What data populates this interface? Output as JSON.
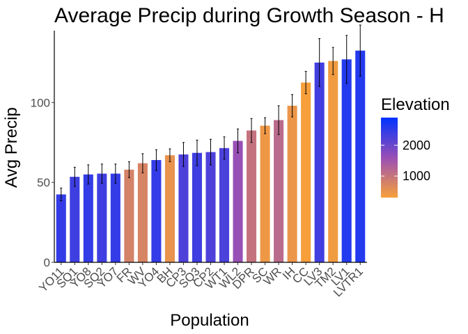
{
  "chart_data": {
    "type": "bar",
    "title": "Average Precip during Growth Season - H",
    "xlabel": "Population",
    "ylabel": "Avg Precip",
    "ylim": [
      0,
      145
    ],
    "yticks": [
      0,
      50,
      100
    ],
    "grid": false,
    "legend": {
      "title": "Elevation",
      "placement": "right",
      "type": "color-gradient",
      "ticks": [
        2000,
        1000
      ],
      "range": [
        300,
        2900
      ],
      "low_color": "#F7A03A",
      "mid_color": "#9A4FB5",
      "high_color": "#0033FF"
    },
    "categories": [
      "YO11",
      "SQ1",
      "YO8",
      "SQ2",
      "YO7",
      "FR",
      "WV",
      "YO4",
      "BH",
      "CP3",
      "SQ3",
      "CP2",
      "WT1",
      "WL2",
      "DPR",
      "SC",
      "WR",
      "IH",
      "CC",
      "LV3",
      "TM2",
      "LV1",
      "LVTR1"
    ],
    "values": [
      42.5,
      53.5,
      55,
      55.5,
      55.5,
      58,
      62,
      64,
      67,
      67.5,
      68.5,
      69,
      71.5,
      76,
      82.5,
      85.5,
      89,
      98,
      112.5,
      125,
      126,
      127,
      132.5
    ],
    "error": [
      4,
      6,
      6,
      6,
      6,
      5,
      6,
      6.5,
      4,
      7.5,
      8,
      8,
      7,
      7.5,
      7.5,
      5,
      9,
      7,
      7,
      15,
      8.5,
      15,
      16
    ],
    "elevation": [
      2470,
      2373,
      2470,
      2373,
      2470,
      787,
      749,
      2470,
      511,
      2244,
      2373,
      2244,
      2266,
      1614,
      1019,
      422,
      1158,
      454,
      313,
      2353,
      379,
      2593,
      2593
    ]
  }
}
